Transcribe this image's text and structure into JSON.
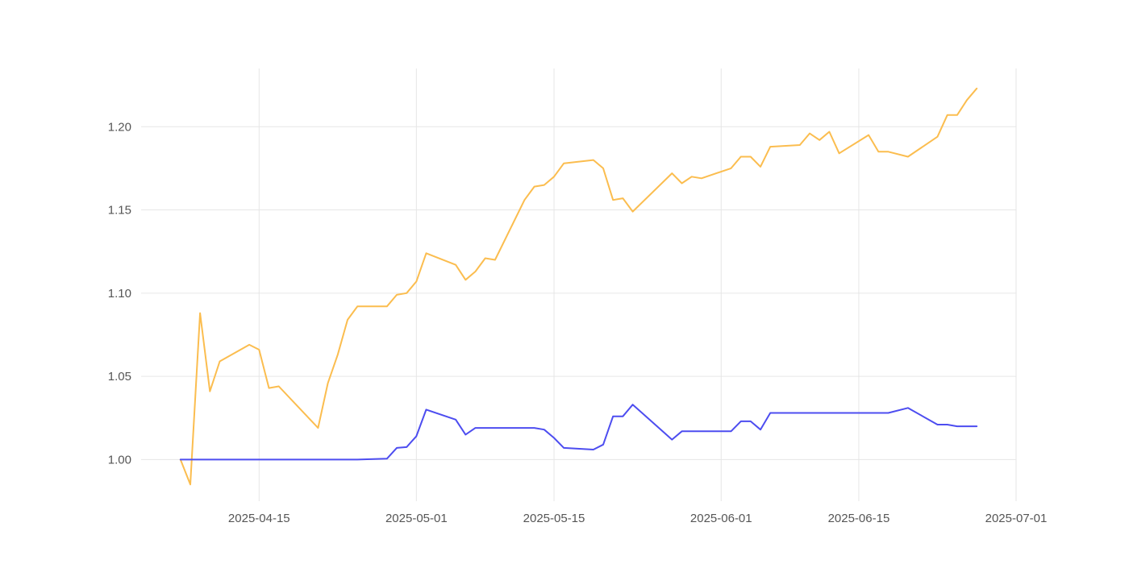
{
  "chart_data": {
    "type": "line",
    "title": "",
    "xlabel": "",
    "ylabel": "",
    "grid": true,
    "legend": "none",
    "xlim": [
      "2025-04-03",
      "2025-07-01"
    ],
    "ylim": [
      0.975,
      1.235
    ],
    "x_ticks": [
      "2025-04-15",
      "2025-05-01",
      "2025-05-15",
      "2025-06-01",
      "2025-06-15",
      "2025-07-01"
    ],
    "y_ticks": [
      "1.00",
      "1.05",
      "1.10",
      "1.15",
      "1.20"
    ],
    "series": [
      {
        "color": "#fbbd4f",
        "x": [
          "2025-04-07",
          "2025-04-08",
          "2025-04-09",
          "2025-04-10",
          "2025-04-11",
          "2025-04-14",
          "2025-04-15",
          "2025-04-16",
          "2025-04-17",
          "2025-04-21",
          "2025-04-22",
          "2025-04-23",
          "2025-04-24",
          "2025-04-25",
          "2025-04-28",
          "2025-04-29",
          "2025-04-30",
          "2025-05-01",
          "2025-05-02",
          "2025-05-05",
          "2025-05-06",
          "2025-05-07",
          "2025-05-08",
          "2025-05-09",
          "2025-05-12",
          "2025-05-13",
          "2025-05-14",
          "2025-05-15",
          "2025-05-16",
          "2025-05-19",
          "2025-05-20",
          "2025-05-21",
          "2025-05-22",
          "2025-05-23",
          "2025-05-27",
          "2025-05-28",
          "2025-05-29",
          "2025-05-30",
          "2025-06-02",
          "2025-06-03",
          "2025-06-04",
          "2025-06-05",
          "2025-06-06",
          "2025-06-09",
          "2025-06-10",
          "2025-06-11",
          "2025-06-12",
          "2025-06-13",
          "2025-06-16",
          "2025-06-17",
          "2025-06-18",
          "2025-06-20",
          "2025-06-23",
          "2025-06-24",
          "2025-06-25",
          "2025-06-26",
          "2025-06-27"
        ],
        "values": [
          1.0,
          0.985,
          1.088,
          1.041,
          1.059,
          1.069,
          1.066,
          1.043,
          1.044,
          1.019,
          1.046,
          1.063,
          1.084,
          1.092,
          1.092,
          1.099,
          1.1,
          1.107,
          1.124,
          1.117,
          1.108,
          1.113,
          1.121,
          1.12,
          1.156,
          1.164,
          1.165,
          1.17,
          1.178,
          1.18,
          1.175,
          1.156,
          1.157,
          1.149,
          1.172,
          1.166,
          1.17,
          1.169,
          1.175,
          1.182,
          1.182,
          1.176,
          1.188,
          1.189,
          1.196,
          1.192,
          1.197,
          1.184,
          1.195,
          1.185,
          1.185,
          1.182,
          1.194,
          1.207,
          1.207,
          1.216,
          1.223
        ]
      },
      {
        "color": "#4d4df0",
        "x": [
          "2025-04-07",
          "2025-04-08",
          "2025-04-09",
          "2025-04-10",
          "2025-04-11",
          "2025-04-14",
          "2025-04-15",
          "2025-04-16",
          "2025-04-17",
          "2025-04-21",
          "2025-04-22",
          "2025-04-23",
          "2025-04-24",
          "2025-04-25",
          "2025-04-28",
          "2025-04-29",
          "2025-04-30",
          "2025-05-01",
          "2025-05-02",
          "2025-05-05",
          "2025-05-06",
          "2025-05-07",
          "2025-05-08",
          "2025-05-09",
          "2025-05-12",
          "2025-05-13",
          "2025-05-14",
          "2025-05-15",
          "2025-05-16",
          "2025-05-19",
          "2025-05-20",
          "2025-05-21",
          "2025-05-22",
          "2025-05-23",
          "2025-05-27",
          "2025-05-28",
          "2025-05-29",
          "2025-05-30",
          "2025-06-02",
          "2025-06-03",
          "2025-06-04",
          "2025-06-05",
          "2025-06-06",
          "2025-06-09",
          "2025-06-10",
          "2025-06-11",
          "2025-06-12",
          "2025-06-13",
          "2025-06-16",
          "2025-06-17",
          "2025-06-18",
          "2025-06-20",
          "2025-06-23",
          "2025-06-24",
          "2025-06-25",
          "2025-06-26",
          "2025-06-27"
        ],
        "values": [
          1.0,
          1.0,
          1.0,
          1.0,
          1.0,
          1.0,
          1.0,
          1.0,
          1.0,
          1.0,
          1.0,
          1.0,
          1.0,
          1.0,
          1.0005,
          1.007,
          1.0075,
          1.014,
          1.03,
          1.024,
          1.015,
          1.019,
          1.019,
          1.019,
          1.019,
          1.019,
          1.018,
          1.013,
          1.007,
          1.006,
          1.009,
          1.026,
          1.026,
          1.033,
          1.012,
          1.017,
          1.017,
          1.017,
          1.017,
          1.023,
          1.023,
          1.018,
          1.028,
          1.028,
          1.028,
          1.028,
          1.028,
          1.028,
          1.028,
          1.028,
          1.028,
          1.031,
          1.021,
          1.021,
          1.02,
          1.02,
          1.02
        ]
      }
    ]
  }
}
